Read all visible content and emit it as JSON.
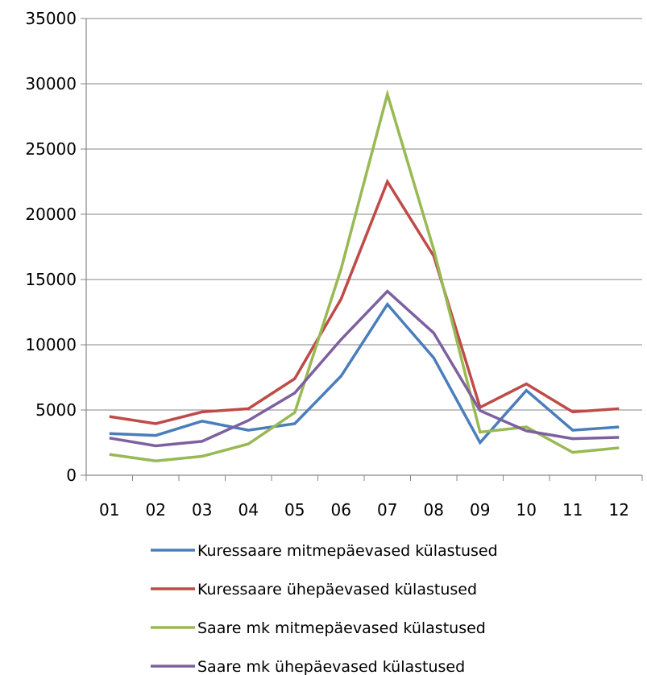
{
  "chart_data": {
    "type": "line",
    "title": "",
    "xlabel": "",
    "ylabel": "",
    "categories": [
      "01",
      "02",
      "03",
      "04",
      "05",
      "06",
      "07",
      "08",
      "09",
      "10",
      "11",
      "12"
    ],
    "ylim": [
      0,
      35000
    ],
    "yticks": [
      "0",
      "5000",
      "10000",
      "15000",
      "20000",
      "25000",
      "30000",
      "35000"
    ],
    "grid": "horizontal",
    "legend_position": "bottom",
    "series": [
      {
        "name": "Kuressaare mitmepäevased külastused",
        "color": "#4a7ebb",
        "values": [
          3200,
          3050,
          4150,
          3450,
          3950,
          7600,
          13100,
          9000,
          2500,
          6500,
          3450,
          3700
        ]
      },
      {
        "name": "Kuressaare ühepäevased külastused",
        "color": "#be4b48",
        "values": [
          4500,
          3950,
          4850,
          5100,
          7400,
          13500,
          22500,
          16800,
          5200,
          7000,
          4850,
          5100
        ]
      },
      {
        "name": "Saare mk mitmepäevased külastused",
        "color": "#98b954",
        "values": [
          1600,
          1100,
          1450,
          2400,
          4800,
          15800,
          29200,
          17300,
          3300,
          3700,
          1750,
          2100
        ]
      },
      {
        "name": "Saare mk ühepäevased külastused",
        "color": "#7d60a0",
        "values": [
          2850,
          2250,
          2600,
          4200,
          6300,
          10400,
          14100,
          10900,
          4950,
          3400,
          2800,
          2900
        ]
      }
    ]
  }
}
